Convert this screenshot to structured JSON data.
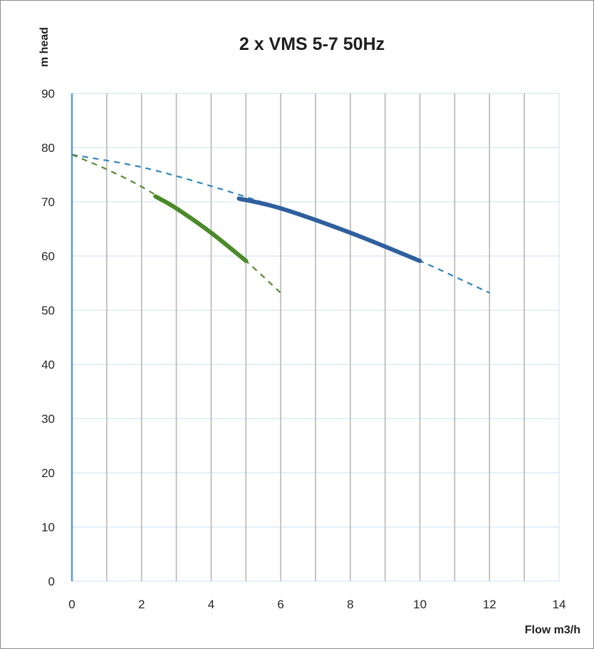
{
  "chart_data": {
    "type": "line",
    "title": "2 x VMS  5-7 50Hz",
    "xlabel": "Flow m3/h",
    "ylabel": "m head",
    "xlim": [
      0,
      14
    ],
    "ylim": [
      0,
      90
    ],
    "x_ticks": [
      "0",
      "2",
      "4",
      "6",
      "8",
      "10",
      "12",
      "14"
    ],
    "y_ticks": [
      "0",
      "10",
      "20",
      "30",
      "40",
      "50",
      "60",
      "70",
      "80",
      "90"
    ],
    "grid": true,
    "colors": {
      "blue": "#2e5f9e",
      "blue_dashed": "#2f86bd",
      "green": "#4a8a2a",
      "green_dashed": "#5a8a35",
      "grid_minor": "#c9e0ef",
      "grid_major": "#b7b7b7",
      "y_axis": "#5b9bd5"
    },
    "series": [
      {
        "style": "dashed",
        "color": "#2f86bd",
        "x": [
          0,
          2,
          4,
          6,
          8,
          10,
          12
        ],
        "y": [
          78.7,
          76.4,
          72.9,
          68.8,
          64.3,
          59.1,
          53.2
        ]
      },
      {
        "style": "solid-thick",
        "color": "#2e5f9e",
        "x": [
          4.8,
          6,
          8,
          10
        ],
        "y": [
          70.6,
          68.8,
          64.3,
          59.1
        ]
      },
      {
        "style": "dashed",
        "color": "#5a8a35",
        "x": [
          0,
          1,
          2,
          3,
          4,
          5,
          6
        ],
        "y": [
          78.7,
          76.0,
          72.8,
          68.8,
          64.3,
          59.1,
          53.2
        ]
      },
      {
        "style": "solid-thick",
        "color": "#4a8a2a",
        "x": [
          2.4,
          3,
          4,
          5
        ],
        "y": [
          71.0,
          68.8,
          64.3,
          59.1
        ]
      }
    ]
  }
}
